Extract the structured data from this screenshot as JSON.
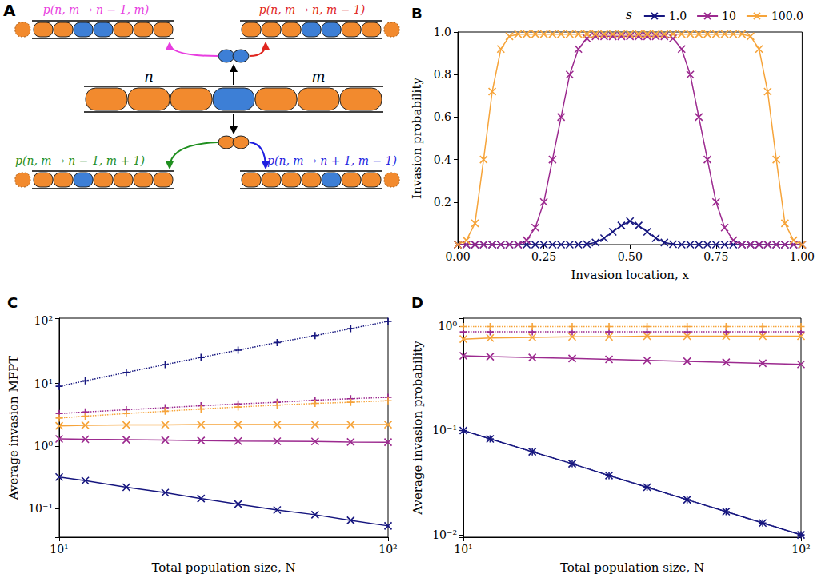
{
  "diagram": {
    "title": "A",
    "left_label": "n",
    "right_label": "m",
    "transitions": [
      {
        "text": "p(n, m → n − 1, m)",
        "color": "#e83ee0"
      },
      {
        "text": "p(n, m → n, m − 1)",
        "color": "#e0261f"
      },
      {
        "text": "p(n, m → n − 1, m + 1)",
        "color": "#1f8f1f"
      },
      {
        "text": "p(n, m → n + 1, m − 1)",
        "color": "#1f1fe0"
      }
    ]
  },
  "chart_data": [
    {
      "type": "line",
      "title": "B",
      "x_label": "Invasion location, x",
      "y_label": "Invasion probability",
      "grid": false,
      "legend": "top",
      "legend_title": "s",
      "xlim": [
        0,
        1
      ],
      "ylim": [
        0,
        1
      ],
      "xticks": [
        {
          "value": 0,
          "label": "0.00"
        },
        0.25,
        {
          "value": 0.5,
          "label": "0.50"
        },
        0.75,
        {
          "value": 1,
          "label": "1.00"
        }
      ],
      "yticks": [
        0.2,
        0.4,
        0.6,
        0.8,
        {
          "value": 1,
          "label": "1.0"
        }
      ],
      "x": [
        0,
        0.025,
        0.05,
        0.075,
        0.1,
        0.125,
        0.15,
        0.175,
        0.2,
        0.225,
        0.25,
        0.275,
        0.3,
        0.325,
        0.35,
        0.375,
        0.4,
        0.425,
        0.45,
        0.475,
        0.5,
        0.525,
        0.55,
        0.575,
        0.6,
        0.625,
        0.65,
        0.675,
        0.7,
        0.725,
        0.75,
        0.775,
        0.8,
        0.825,
        0.85,
        0.875,
        0.9,
        0.925,
        0.95,
        0.975,
        1
      ],
      "series": [
        {
          "name": "1.0",
          "color": "#16167f",
          "marker": "x",
          "line_style": "solid",
          "values": [
            0,
            0,
            0,
            0,
            0,
            0,
            0,
            0,
            0,
            0,
            0,
            0,
            0,
            0,
            0,
            0.002,
            0.01,
            0.03,
            0.06,
            0.09,
            0.11,
            0.09,
            0.06,
            0.03,
            0.01,
            0.002,
            0,
            0,
            0,
            0,
            0,
            0,
            0,
            0,
            0,
            0,
            0,
            0,
            0,
            0,
            0
          ]
        },
        {
          "name": "10",
          "color": "#9c2a8f",
          "marker": "x",
          "line_style": "solid",
          "values": [
            0,
            0,
            0,
            0,
            0,
            0,
            0,
            0,
            0.02,
            0.08,
            0.2,
            0.4,
            0.6,
            0.8,
            0.92,
            0.97,
            0.98,
            0.98,
            0.98,
            0.98,
            0.98,
            0.98,
            0.98,
            0.98,
            0.98,
            0.97,
            0.92,
            0.8,
            0.6,
            0.4,
            0.2,
            0.08,
            0.02,
            0,
            0,
            0,
            0,
            0,
            0,
            0,
            0
          ]
        },
        {
          "name": "100.0",
          "color": "#f6a43a",
          "marker": "x",
          "line_style": "solid",
          "values": [
            0,
            0.02,
            0.1,
            0.4,
            0.72,
            0.92,
            0.98,
            0.99,
            0.99,
            0.99,
            0.99,
            0.99,
            0.99,
            0.99,
            0.99,
            0.99,
            0.99,
            0.99,
            0.99,
            0.99,
            0.99,
            0.99,
            0.99,
            0.99,
            0.99,
            0.99,
            0.99,
            0.99,
            0.99,
            0.99,
            0.99,
            0.99,
            0.99,
            0.99,
            0.98,
            0.92,
            0.72,
            0.4,
            0.1,
            0.02,
            0
          ]
        }
      ]
    },
    {
      "type": "line",
      "title": "C",
      "x_label": "Total population size, N",
      "y_label": "Average invasion MFPT",
      "log": true,
      "grid": false,
      "xlim": [
        10,
        100
      ],
      "ylim": [
        0.035,
        110
      ],
      "xticks": [
        {
          "value": 10,
          "label": "10¹"
        },
        {
          "value": 100,
          "label": "10²"
        }
      ],
      "yticks": [
        {
          "value": 0.1,
          "label": "10⁻¹"
        },
        {
          "value": 1,
          "label": "10⁰"
        },
        {
          "value": 10,
          "label": "10¹"
        },
        {
          "value": 100,
          "label": "10²"
        }
      ],
      "x": [
        10,
        12,
        16,
        21,
        27,
        35,
        46,
        60,
        77,
        100
      ],
      "series": [
        {
          "color": "#16167f",
          "marker": "plus",
          "line_style": "dotted",
          "values": [
            9,
            11,
            15,
            20,
            26,
            34,
            45,
            58,
            75,
            98
          ]
        },
        {
          "color": "#16167f",
          "marker": "x",
          "line_style": "solid",
          "values": [
            0.32,
            0.28,
            0.22,
            0.18,
            0.145,
            0.118,
            0.095,
            0.08,
            0.065,
            0.053
          ]
        },
        {
          "color": "#9c2a8f",
          "marker": "plus",
          "line_style": "dotted",
          "values": [
            3.3,
            3.5,
            3.8,
            4.1,
            4.4,
            4.7,
            5.0,
            5.4,
            5.7,
            6.0
          ]
        },
        {
          "color": "#9c2a8f",
          "marker": "x",
          "line_style": "solid",
          "values": [
            1.3,
            1.28,
            1.26,
            1.24,
            1.22,
            1.2,
            1.19,
            1.18,
            1.16,
            1.15
          ]
        },
        {
          "color": "#f6a43a",
          "marker": "plus",
          "line_style": "dotted",
          "values": [
            2.8,
            3.0,
            3.3,
            3.6,
            3.9,
            4.2,
            4.5,
            4.8,
            5.0,
            5.3
          ]
        },
        {
          "color": "#f6a43a",
          "marker": "x",
          "line_style": "solid",
          "values": [
            2.1,
            2.15,
            2.17,
            2.18,
            2.2,
            2.2,
            2.2,
            2.2,
            2.2,
            2.2
          ]
        }
      ]
    },
    {
      "type": "line",
      "title": "D",
      "x_label": "Total population size, N",
      "y_label": "Average invasion probability",
      "log": true,
      "grid": false,
      "xlim": [
        10,
        100
      ],
      "ylim": [
        0.0095,
        1.19
      ],
      "xticks": [
        {
          "value": 10,
          "label": "10¹"
        },
        {
          "value": 100,
          "label": "10²"
        }
      ],
      "yticks": [
        {
          "value": 0.01,
          "label": "10⁻²"
        },
        {
          "value": 0.1,
          "label": "10⁻¹"
        },
        {
          "value": 1,
          "label": "10⁰"
        }
      ],
      "x": [
        10,
        12,
        16,
        21,
        27,
        35,
        46,
        60,
        77,
        100
      ],
      "series": [
        {
          "color": "#16167f",
          "marker": "plus",
          "line_style": "dotted",
          "values": [
            0.1,
            0.083,
            0.0625,
            0.048,
            0.037,
            0.0286,
            0.0217,
            0.0167,
            0.013,
            0.01
          ]
        },
        {
          "color": "#16167f",
          "marker": "x",
          "line_style": "solid",
          "values": [
            0.1,
            0.083,
            0.0625,
            0.048,
            0.037,
            0.0286,
            0.0217,
            0.0167,
            0.013,
            0.01
          ]
        },
        {
          "color": "#9c2a8f",
          "marker": "plus",
          "line_style": "dotted",
          "values": [
            0.88,
            0.88,
            0.88,
            0.88,
            0.88,
            0.88,
            0.88,
            0.88,
            0.88,
            0.88
          ]
        },
        {
          "color": "#9c2a8f",
          "marker": "x",
          "line_style": "solid",
          "values": [
            0.52,
            0.51,
            0.5,
            0.49,
            0.48,
            0.47,
            0.46,
            0.45,
            0.44,
            0.43
          ]
        },
        {
          "color": "#f6a43a",
          "marker": "plus",
          "line_style": "dotted",
          "values": [
            0.99,
            0.99,
            0.99,
            0.99,
            0.99,
            0.99,
            0.99,
            0.99,
            0.99,
            0.99
          ]
        },
        {
          "color": "#f6a43a",
          "marker": "x",
          "line_style": "solid",
          "values": [
            0.75,
            0.77,
            0.78,
            0.79,
            0.79,
            0.8,
            0.8,
            0.8,
            0.8,
            0.8
          ]
        }
      ]
    }
  ]
}
